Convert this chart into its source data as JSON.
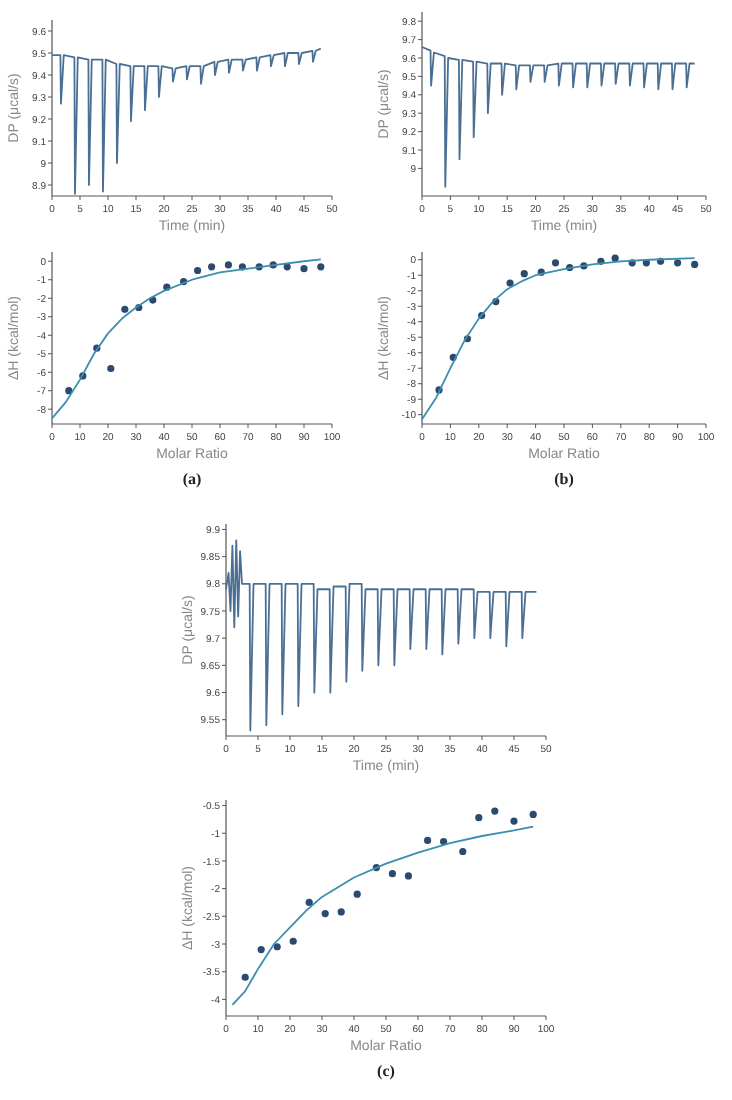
{
  "chart_data": [
    {
      "type": "line",
      "xlabel": "Time (min)",
      "ylabel": "DP (μcal/s)",
      "xlim": [
        0,
        50
      ],
      "xticks": [
        0,
        5,
        10,
        15,
        20,
        25,
        30,
        35,
        40,
        45,
        50
      ],
      "ylim": [
        8.85,
        9.65
      ],
      "yticks": [
        8.9,
        9,
        9.1,
        9.2,
        9.3,
        9.4,
        9.5,
        9.6
      ],
      "series": [
        {
          "color": "#4a6f92",
          "x": [
            0,
            1.5,
            1.6,
            2.1,
            4,
            4.1,
            4.6,
            6.5,
            6.6,
            7.1,
            9,
            9.1,
            9.6,
            11.5,
            11.6,
            12.1,
            14,
            14.1,
            14.6,
            16.5,
            16.6,
            17.1,
            19,
            19.1,
            19.6,
            21.5,
            21.6,
            22.1,
            24,
            24.1,
            24.6,
            26.5,
            26.6,
            27.1,
            29,
            29.1,
            29.6,
            31.5,
            31.6,
            32.1,
            34,
            34.1,
            34.6,
            36.5,
            36.6,
            37.1,
            39,
            39.1,
            39.6,
            41.5,
            41.6,
            42.1,
            44,
            44.1,
            44.6,
            46.5,
            46.6,
            47.1,
            48
          ],
          "values": [
            9.49,
            9.49,
            9.27,
            9.49,
            9.48,
            8.86,
            9.48,
            9.47,
            8.9,
            9.47,
            9.47,
            8.87,
            9.47,
            9.45,
            9.0,
            9.45,
            9.44,
            9.19,
            9.44,
            9.44,
            9.24,
            9.44,
            9.44,
            9.3,
            9.44,
            9.43,
            9.37,
            9.43,
            9.44,
            9.38,
            9.44,
            9.44,
            9.36,
            9.44,
            9.46,
            9.4,
            9.46,
            9.47,
            9.41,
            9.47,
            9.47,
            9.42,
            9.47,
            9.48,
            9.42,
            9.48,
            9.49,
            9.44,
            9.49,
            9.5,
            9.44,
            9.5,
            9.5,
            9.45,
            9.5,
            9.51,
            9.46,
            9.51,
            9.52
          ]
        }
      ]
    },
    {
      "type": "scatter",
      "xlabel": "Molar Ratio",
      "ylabel": "ΔH (kcal/mol)",
      "xlim": [
        0,
        100
      ],
      "xticks": [
        0,
        10,
        20,
        30,
        40,
        50,
        60,
        70,
        80,
        90,
        100
      ],
      "ylim": [
        -8.8,
        0.5
      ],
      "yticks": [
        -8,
        -7,
        -6,
        -5,
        -4,
        -3,
        -2,
        -1,
        0
      ],
      "annotations": [
        "(a)"
      ],
      "series": [
        {
          "marker": "circle",
          "color": "#2c4a6e",
          "x": [
            6,
            11,
            16,
            21,
            26,
            31,
            36,
            41,
            47,
            52,
            57,
            63,
            68,
            74,
            79,
            84,
            90,
            96
          ],
          "values": [
            -7.0,
            -6.2,
            -4.7,
            -5.8,
            -2.6,
            -2.5,
            -2.1,
            -1.4,
            -1.1,
            -0.5,
            -0.3,
            -0.2,
            -0.3,
            -0.3,
            -0.2,
            -0.3,
            -0.4,
            -0.3
          ]
        },
        {
          "type": "line",
          "color": "#3b8fb0",
          "x": [
            0,
            5,
            10,
            15,
            20,
            25,
            30,
            35,
            40,
            50,
            60,
            70,
            80,
            90,
            96
          ],
          "values": [
            -8.5,
            -7.6,
            -6.4,
            -5.0,
            -3.9,
            -3.1,
            -2.5,
            -2.0,
            -1.6,
            -1.0,
            -0.6,
            -0.4,
            -0.2,
            0.0,
            0.1
          ]
        }
      ]
    },
    {
      "type": "line",
      "xlabel": "Time (min)",
      "ylabel": "DP (μcal/s)",
      "xlim": [
        0,
        50
      ],
      "xticks": [
        0,
        5,
        10,
        15,
        20,
        25,
        30,
        35,
        40,
        45,
        50
      ],
      "ylim": [
        8.85,
        9.85
      ],
      "yticks": [
        9,
        9.1,
        9.2,
        9.3,
        9.4,
        9.5,
        9.6,
        9.7,
        9.8
      ],
      "series": [
        {
          "color": "#4a6f92",
          "x": [
            0,
            1.5,
            1.6,
            2.1,
            4,
            4.1,
            4.6,
            6.5,
            6.6,
            7.1,
            9,
            9.1,
            9.6,
            11.5,
            11.6,
            12.1,
            14,
            14.1,
            14.6,
            16.5,
            16.6,
            17.1,
            19,
            19.1,
            19.6,
            21.5,
            21.6,
            22.1,
            24,
            24.1,
            24.6,
            26.5,
            26.6,
            27.1,
            29,
            29.1,
            29.6,
            31.5,
            31.6,
            32.1,
            34,
            34.1,
            34.6,
            36.5,
            36.6,
            37.1,
            39,
            39.1,
            39.6,
            41.5,
            41.6,
            42.1,
            44,
            44.1,
            44.6,
            46.5,
            46.6,
            47.1,
            48
          ],
          "values": [
            9.66,
            9.64,
            9.45,
            9.63,
            9.61,
            8.9,
            9.6,
            9.59,
            9.05,
            9.59,
            9.58,
            9.17,
            9.58,
            9.57,
            9.3,
            9.57,
            9.57,
            9.4,
            9.57,
            9.56,
            9.43,
            9.56,
            9.56,
            9.47,
            9.56,
            9.56,
            9.47,
            9.56,
            9.57,
            9.45,
            9.57,
            9.57,
            9.44,
            9.57,
            9.57,
            9.44,
            9.57,
            9.57,
            9.45,
            9.57,
            9.57,
            9.46,
            9.57,
            9.57,
            9.45,
            9.57,
            9.57,
            9.44,
            9.57,
            9.57,
            9.43,
            9.57,
            9.57,
            9.43,
            9.57,
            9.57,
            9.44,
            9.57,
            9.57
          ]
        }
      ]
    },
    {
      "type": "scatter",
      "xlabel": "Molar Ratio",
      "ylabel": "ΔH (kcal/mol)",
      "xlim": [
        0,
        100
      ],
      "xticks": [
        0,
        10,
        20,
        30,
        40,
        50,
        60,
        70,
        80,
        90,
        100
      ],
      "ylim": [
        -10.6,
        0.5
      ],
      "yticks": [
        -10,
        -9,
        -8,
        -7,
        -6,
        -5,
        -4,
        -3,
        -2,
        -1,
        0
      ],
      "annotations": [
        "(b)"
      ],
      "series": [
        {
          "marker": "circle",
          "color": "#2c4a6e",
          "x": [
            6,
            11,
            16,
            21,
            26,
            31,
            36,
            42,
            47,
            52,
            57,
            63,
            68,
            74,
            79,
            84,
            90,
            96
          ],
          "values": [
            -8.4,
            -6.3,
            -5.1,
            -3.6,
            -2.7,
            -1.5,
            -0.9,
            -0.8,
            -0.2,
            -0.5,
            -0.4,
            -0.1,
            0.1,
            -0.2,
            -0.2,
            -0.1,
            -0.2,
            -0.3
          ]
        },
        {
          "type": "line",
          "color": "#3b8fb0",
          "x": [
            0,
            5,
            10,
            15,
            20,
            25,
            30,
            35,
            40,
            50,
            60,
            70,
            80,
            96
          ],
          "values": [
            -10.3,
            -8.9,
            -7.0,
            -5.2,
            -3.8,
            -2.7,
            -1.9,
            -1.4,
            -1.0,
            -0.6,
            -0.3,
            -0.1,
            0.0,
            0.1
          ]
        }
      ]
    },
    {
      "type": "line",
      "xlabel": "Time (min)",
      "ylabel": "DP (μcal/s)",
      "xlim": [
        0,
        50
      ],
      "xticks": [
        0,
        5,
        10,
        15,
        20,
        25,
        30,
        35,
        40,
        45,
        50
      ],
      "ylim": [
        9.52,
        9.91
      ],
      "yticks": [
        9.55,
        9.6,
        9.65,
        9.7,
        9.75,
        9.8,
        9.85,
        9.9
      ],
      "series": [
        {
          "color": "#4a6f92",
          "x": [
            0,
            0.4,
            0.7,
            1,
            1.3,
            1.6,
            1.9,
            2.2,
            2.5,
            3.7,
            3.8,
            4.3,
            6.2,
            6.3,
            6.8,
            8.7,
            8.8,
            9.3,
            11.2,
            11.3,
            11.8,
            13.7,
            13.8,
            14.3,
            16.2,
            16.3,
            16.8,
            18.7,
            18.8,
            19.3,
            21.2,
            21.3,
            21.8,
            23.7,
            23.8,
            24.3,
            26.2,
            26.3,
            26.8,
            28.7,
            28.8,
            29.3,
            31.2,
            31.3,
            31.8,
            33.7,
            33.8,
            34.3,
            36.2,
            36.3,
            36.8,
            38.7,
            38.8,
            39.3,
            41.2,
            41.3,
            41.8,
            43.7,
            43.8,
            44.3,
            46.2,
            46.3,
            46.8,
            48.5
          ],
          "values": [
            9.79,
            9.82,
            9.75,
            9.87,
            9.72,
            9.88,
            9.74,
            9.86,
            9.8,
            9.8,
            9.53,
            9.8,
            9.8,
            9.54,
            9.8,
            9.8,
            9.56,
            9.8,
            9.8,
            9.575,
            9.8,
            9.8,
            9.6,
            9.79,
            9.79,
            9.6,
            9.795,
            9.795,
            9.62,
            9.8,
            9.8,
            9.64,
            9.79,
            9.79,
            9.65,
            9.79,
            9.79,
            9.65,
            9.79,
            9.79,
            9.68,
            9.79,
            9.79,
            9.68,
            9.79,
            9.79,
            9.67,
            9.79,
            9.79,
            9.69,
            9.79,
            9.79,
            9.7,
            9.785,
            9.785,
            9.7,
            9.785,
            9.785,
            9.685,
            9.785,
            9.785,
            9.7,
            9.785,
            9.785
          ]
        }
      ]
    },
    {
      "type": "scatter",
      "xlabel": "Molar Ratio",
      "ylabel": "ΔH (kcal/mol)",
      "xlim": [
        0,
        100
      ],
      "xticks": [
        0,
        10,
        20,
        30,
        40,
        50,
        60,
        70,
        80,
        90,
        100
      ],
      "ylim": [
        -4.3,
        -0.4
      ],
      "yticks": [
        -4,
        -3.5,
        -3,
        -2.5,
        -2,
        -1.5,
        -1,
        -0.5
      ],
      "annotations": [
        "(c)"
      ],
      "series": [
        {
          "marker": "circle",
          "color": "#2c4a6e",
          "x": [
            6,
            11,
            16,
            21,
            26,
            31,
            36,
            41,
            47,
            52,
            57,
            63,
            68,
            74,
            79,
            84,
            90,
            96
          ],
          "values": [
            -3.6,
            -3.1,
            -3.05,
            -2.95,
            -2.25,
            -2.45,
            -2.42,
            -2.1,
            -1.62,
            -1.73,
            -1.77,
            -1.13,
            -1.15,
            -1.33,
            -0.72,
            -0.6,
            -0.78,
            -0.66
          ]
        },
        {
          "type": "line",
          "color": "#3b8fb0",
          "x": [
            2,
            6,
            10,
            15,
            20,
            25,
            30,
            40,
            50,
            60,
            70,
            80,
            90,
            96
          ],
          "values": [
            -4.1,
            -3.85,
            -3.45,
            -3.0,
            -2.7,
            -2.4,
            -2.15,
            -1.8,
            -1.55,
            -1.35,
            -1.18,
            -1.05,
            -0.95,
            -0.88
          ]
        }
      ]
    }
  ]
}
